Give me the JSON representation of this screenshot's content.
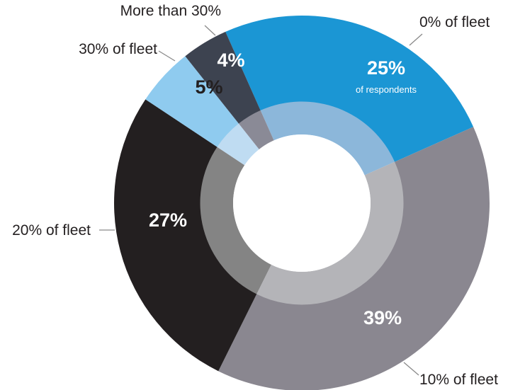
{
  "chart_data": {
    "type": "pie",
    "title": "",
    "categories": [
      "0% of fleet",
      "10% of fleet",
      "20% of fleet",
      "30% of fleet",
      "More than 30%"
    ],
    "values": [
      25,
      39,
      27,
      5,
      4
    ],
    "value_labels": [
      "25%",
      "39%",
      "27%",
      "5%",
      "4%"
    ],
    "value_sublabel": "of respondents",
    "colors": {
      "outer": [
        "#1b96d4",
        "#8a8790",
        "#231f20",
        "#8fcbef",
        "#3d4350"
      ],
      "inner": [
        "#8cb7da",
        "#b4b4b8",
        "#848484",
        "#bfdcf2",
        "#8a8a96"
      ],
      "pct_text": [
        "#ffffff",
        "#ffffff",
        "#ffffff",
        "#231f20",
        "#ffffff"
      ]
    },
    "donut": true,
    "legend": "none"
  }
}
